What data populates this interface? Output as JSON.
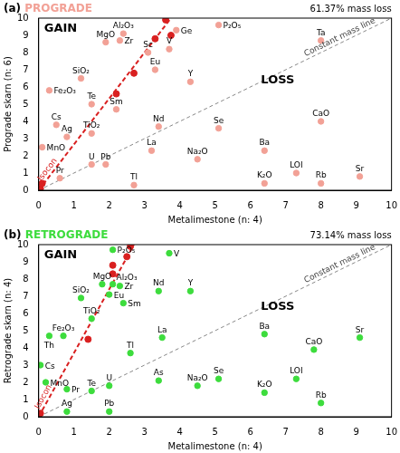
{
  "chart_data": [
    {
      "type": "scatter",
      "panel": "(a)",
      "title": "PROGRADE",
      "color": "#f2a196",
      "mass_loss": "61.37% mass loss",
      "gain_label": "GAIN",
      "loss_label": "LOSS",
      "x_label": "Metalimestone (n: 4)",
      "y_label": "Prograde skarn (n: 6)",
      "xlim": [
        0,
        10
      ],
      "ylim": [
        0,
        10
      ],
      "xticks": [
        0,
        1,
        2,
        3,
        4,
        5,
        6,
        7,
        8,
        9,
        10
      ],
      "yticks": [
        0,
        1,
        2,
        3,
        4,
        5,
        6,
        7,
        8,
        9,
        10
      ],
      "grid": false,
      "points": {
        "labels": [
          "Al₂O₃",
          "Ge",
          "P₂O₅",
          "MgO",
          "Zr",
          "V",
          "Sc",
          "Ta",
          "Eu",
          "SiO₂",
          "Fe₂O₃",
          "Y",
          "Te",
          "Sm",
          "Cs",
          "Ag",
          "TiO₂",
          "MnO",
          "Nd",
          "Se",
          "CaO",
          "U",
          "Pb",
          "La",
          "Na₂O",
          "Ba",
          "Pr",
          "Tl",
          "K₂O",
          "LOI",
          "Rb",
          "Sr"
        ],
        "x": [
          2.4,
          3.9,
          5.1,
          1.9,
          2.3,
          3.7,
          3.1,
          8.0,
          3.3,
          1.2,
          0.3,
          4.3,
          1.5,
          2.2,
          0.5,
          0.8,
          1.5,
          0.1,
          3.4,
          5.1,
          8.0,
          1.5,
          1.9,
          3.2,
          4.5,
          6.4,
          0.6,
          2.7,
          6.4,
          7.3,
          8.0,
          9.1
        ],
        "y": [
          9.1,
          9.3,
          9.6,
          8.6,
          8.7,
          8.2,
          8.0,
          8.7,
          7.0,
          6.5,
          5.8,
          6.3,
          5.0,
          4.7,
          3.8,
          3.1,
          3.3,
          2.5,
          3.7,
          3.6,
          4.0,
          1.5,
          1.5,
          2.3,
          1.8,
          2.3,
          0.7,
          0.3,
          0.4,
          1.0,
          0.4,
          0.8
        ]
      },
      "isocon": {
        "label": "Isocon",
        "color": "#d92020",
        "x": [
          0,
          3.75
        ],
        "y": [
          0,
          10
        ],
        "points": {
          "x": [
            0.05,
            0.1,
            2.2,
            2.7,
            3.3,
            3.75,
            3.6
          ],
          "y": [
            0.1,
            0.4,
            5.6,
            6.8,
            8.8,
            9.0,
            9.9
          ]
        }
      },
      "constant_mass_line": {
        "label": "Constant mass line",
        "x": [
          0,
          10
        ],
        "y": [
          0,
          10
        ]
      }
    },
    {
      "type": "scatter",
      "panel": "(b)",
      "title": "RETROGRADE",
      "color": "#3ddc3d",
      "mass_loss": "73.14% mass loss",
      "gain_label": "GAIN",
      "loss_label": "LOSS",
      "x_label": "Metalimestone (n: 4)",
      "y_label": "Retrograde skarn (n: 4)",
      "xlim": [
        0,
        10
      ],
      "ylim": [
        0,
        10
      ],
      "xticks": [
        0,
        1,
        2,
        3,
        4,
        5,
        6,
        7,
        8,
        9,
        10
      ],
      "yticks": [
        0,
        1,
        2,
        3,
        4,
        5,
        6,
        7,
        8,
        9,
        10
      ],
      "grid": false,
      "points": {
        "labels": [
          "P₂O₅",
          "V",
          "MgO",
          "Al₂O₃",
          "Zr",
          "Eu",
          "Nd",
          "Y",
          "Sm",
          "SiO₂",
          "TiO₂",
          "Fe₂O₃",
          "Th",
          "La",
          "Ba",
          "Sr",
          "Tl",
          "CaO",
          "Cs",
          "MnO",
          "As",
          "Na₂O",
          "Se",
          "K₂O",
          "LOI",
          "Pr",
          "Te",
          "U",
          "Rb",
          "Ag",
          "Pb"
        ],
        "x": [
          2.1,
          3.7,
          1.8,
          2.1,
          2.3,
          2.0,
          3.4,
          4.3,
          2.4,
          1.2,
          1.5,
          0.7,
          0.3,
          3.5,
          6.4,
          9.1,
          2.6,
          7.8,
          0.05,
          0.2,
          3.4,
          4.5,
          5.1,
          6.4,
          7.3,
          0.8,
          1.5,
          2.0,
          8.0,
          0.8,
          2.0
        ],
        "y": [
          9.7,
          9.5,
          7.7,
          7.7,
          7.6,
          7.1,
          7.3,
          7.3,
          6.6,
          6.9,
          5.7,
          4.7,
          4.7,
          4.6,
          4.8,
          4.6,
          3.7,
          3.9,
          3.0,
          2.0,
          2.1,
          1.8,
          2.2,
          1.4,
          2.2,
          1.6,
          1.5,
          1.8,
          0.8,
          0.3,
          0.3
        ]
      },
      "isocon": {
        "label": "Isocon",
        "color": "#d92020",
        "x": [
          0,
          2.7
        ],
        "y": [
          0,
          10
        ],
        "points": {
          "x": [
            0.05,
            1.4,
            2.1,
            2.1,
            2.5,
            2.6
          ],
          "y": [
            0.2,
            4.5,
            8.3,
            8.8,
            9.3,
            9.9
          ]
        }
      },
      "constant_mass_line": {
        "label": "Constant mass line",
        "x": [
          0,
          10
        ],
        "y": [
          0,
          10
        ]
      }
    }
  ]
}
